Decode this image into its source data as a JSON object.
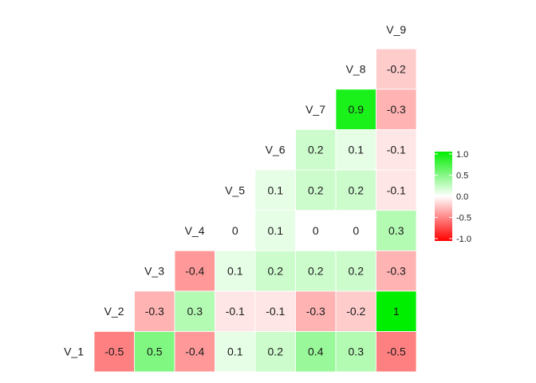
{
  "chart_data": {
    "type": "heatmap",
    "title": "",
    "variables": [
      "V_1",
      "V_2",
      "V_3",
      "V_4",
      "V_5",
      "V_6",
      "V_7",
      "V_8",
      "V_9"
    ],
    "rows": [
      {
        "name": "V_1",
        "values": [
          -0.5,
          0.5,
          -0.4,
          0.1,
          0.2,
          0.4,
          0.3,
          -0.5
        ]
      },
      {
        "name": "V_2",
        "values": [
          -0.3,
          0.3,
          -0.1,
          -0.1,
          -0.3,
          -0.2,
          1
        ]
      },
      {
        "name": "V_3",
        "values": [
          -0.4,
          0.1,
          0.2,
          0.2,
          0.2,
          -0.3
        ]
      },
      {
        "name": "V_4",
        "values": [
          0,
          0.1,
          0,
          0,
          0.3
        ]
      },
      {
        "name": "V_5",
        "values": [
          0.1,
          0.2,
          0.2,
          -0.1
        ]
      },
      {
        "name": "V_6",
        "values": [
          0.2,
          0.1,
          -0.1
        ]
      },
      {
        "name": "V_7",
        "values": [
          0.9,
          -0.3
        ]
      },
      {
        "name": "V_8",
        "values": [
          -0.2
        ]
      }
    ],
    "legend": {
      "position": "right",
      "range": [
        -1,
        1
      ],
      "low_color": "#ff0000",
      "mid_color": "#ffffff",
      "high_color": "#00ee00",
      "ticks": [
        "1.0",
        "0.5",
        "0.0",
        "-0.5",
        "-1.0"
      ]
    }
  }
}
